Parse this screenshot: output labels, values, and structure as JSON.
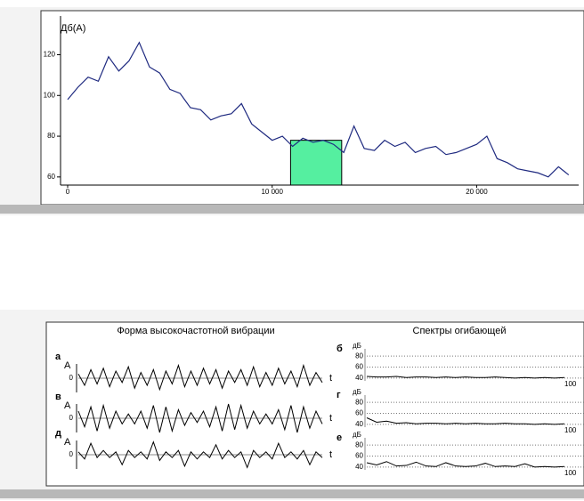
{
  "chart_data": [
    {
      "type": "line",
      "ylabel": "Дб(А)",
      "color": "#1f2a80",
      "x": [
        0,
        500,
        1000,
        1500,
        2000,
        2500,
        3000,
        3500,
        4000,
        4500,
        5000,
        5500,
        6000,
        6500,
        7000,
        7500,
        8000,
        8500,
        9000,
        9500,
        10000,
        10500,
        11000,
        11500,
        12000,
        12500,
        13000,
        13500,
        14000,
        14500,
        15000,
        15500,
        16000,
        16500,
        17000,
        17500,
        18000,
        18500,
        19000,
        19500,
        20000,
        20500,
        21000,
        21500,
        22000,
        22500,
        23000,
        23500,
        24000,
        24500
      ],
      "values": [
        98,
        104,
        109,
        107,
        119,
        112,
        117,
        126,
        114,
        111,
        103,
        101,
        94,
        93,
        88,
        90,
        91,
        96,
        86,
        82,
        78,
        80,
        75,
        79,
        77,
        78,
        76,
        72,
        85,
        74,
        73,
        78,
        75,
        77,
        72,
        74,
        75,
        71,
        72,
        74,
        76,
        80,
        69,
        67,
        64,
        63,
        62,
        60,
        65,
        61
      ],
      "highlight": [
        10900,
        13400
      ],
      "highlight_color": "#55efa0",
      "xlim": [
        0,
        24900
      ],
      "ylim": [
        56,
        139
      ],
      "xticks": [
        0,
        {
          "value": 10000,
          "label": "10 000"
        },
        {
          "value": 20000,
          "label": "20 000"
        }
      ],
      "yticks": [
        60,
        80,
        100,
        120
      ]
    },
    {
      "type": "waveform",
      "title": "Форма высокочастотной вибрации",
      "label": "а",
      "ylabel": "A",
      "xlabel": "t",
      "color": "#000000",
      "ylim": [
        -1,
        1
      ],
      "yticks": [
        0
      ],
      "values": [
        0.3,
        -0.5,
        0.6,
        -0.4,
        0.7,
        -0.6,
        0.5,
        -0.3,
        0.8,
        -0.7,
        0.4,
        -0.5,
        0.6,
        -0.8,
        0.5,
        -0.4,
        0.9,
        -0.6,
        0.5,
        -0.5,
        0.7,
        -0.4,
        0.6,
        -0.7,
        0.5,
        -0.3,
        0.6,
        -0.5,
        0.8,
        -0.6,
        0.4,
        -0.5,
        0.7,
        -0.4,
        0.5,
        -0.6,
        0.9,
        -0.5,
        0.4,
        -0.3
      ]
    },
    {
      "type": "waveform",
      "label": "в",
      "ylabel": "A",
      "xlabel": "t",
      "color": "#000000",
      "ylim": [
        -1,
        1
      ],
      "yticks": [
        0
      ],
      "values": [
        0.5,
        -0.6,
        0.8,
        -0.9,
        0.9,
        -0.7,
        0.5,
        -0.4,
        0.3,
        -0.4,
        0.5,
        -0.7,
        0.9,
        -1,
        0.8,
        -0.9,
        0.6,
        -0.5,
        0.4,
        -0.3,
        0.5,
        -0.6,
        0.8,
        -0.9,
        1,
        -0.8,
        0.9,
        -0.7,
        0.5,
        -0.4,
        0.3,
        -0.4,
        0.6,
        -0.8,
        0.9,
        -1,
        0.8,
        -0.7,
        0.5,
        -0.4
      ]
    },
    {
      "type": "waveform",
      "label": "д",
      "ylabel": "A",
      "xlabel": "t",
      "color": "#000000",
      "ylim": [
        -1,
        1
      ],
      "yticks": [
        0
      ],
      "values": [
        0.2,
        -0.3,
        0.8,
        -0.2,
        0.3,
        -0.2,
        0.2,
        -0.7,
        0.3,
        -0.2,
        0.2,
        -0.3,
        0.9,
        -0.4,
        0.2,
        -0.2,
        0.3,
        -0.8,
        0.2,
        -0.3,
        0.2,
        -0.2,
        0.7,
        -0.3,
        0.3,
        -0.2,
        0.2,
        -0.9,
        0.3,
        -0.2,
        0.2,
        -0.3,
        0.8,
        -0.2,
        0.2,
        -0.3,
        0.3,
        -0.7,
        0.2,
        -0.2
      ]
    },
    {
      "type": "spectrum",
      "title": "Спектры огибающей",
      "label": "б",
      "ylabel": "дБ",
      "color": "#000000",
      "xlim": [
        0,
        100
      ],
      "ylim": [
        35,
        90
      ],
      "xticks": [
        100
      ],
      "yticks": [
        40,
        60,
        80
      ],
      "x": [
        0,
        5,
        10,
        15,
        20,
        25,
        30,
        35,
        40,
        45,
        50,
        55,
        60,
        65,
        70,
        75,
        80,
        85,
        90,
        95,
        100
      ],
      "values": [
        43,
        42,
        42,
        43,
        41,
        42,
        42,
        41,
        42,
        41,
        42,
        41,
        41,
        42,
        41,
        40,
        41,
        40,
        41,
        40,
        41
      ]
    },
    {
      "type": "spectrum",
      "label": "г",
      "ylabel": "дБ",
      "color": "#000000",
      "xlim": [
        0,
        100
      ],
      "ylim": [
        35,
        90
      ],
      "xticks": [
        100
      ],
      "yticks": [
        40,
        60,
        80
      ],
      "x": [
        0,
        5,
        10,
        15,
        20,
        25,
        30,
        35,
        40,
        45,
        50,
        55,
        60,
        65,
        70,
        75,
        80,
        85,
        90,
        95,
        100
      ],
      "values": [
        52,
        44,
        46,
        42,
        43,
        41,
        42,
        42,
        41,
        42,
        41,
        42,
        41,
        41,
        42,
        41,
        41,
        40,
        41,
        40,
        41
      ]
    },
    {
      "type": "spectrum",
      "label": "е",
      "ylabel": "дБ",
      "color": "#000000",
      "xlim": [
        0,
        100
      ],
      "ylim": [
        35,
        90
      ],
      "xticks": [
        100
      ],
      "yticks": [
        40,
        60,
        80
      ],
      "x": [
        0,
        5,
        10,
        15,
        20,
        25,
        30,
        35,
        40,
        45,
        50,
        55,
        60,
        65,
        70,
        75,
        80,
        85,
        90,
        95,
        100
      ],
      "values": [
        48,
        44,
        50,
        42,
        43,
        49,
        42,
        41,
        48,
        42,
        41,
        42,
        47,
        41,
        42,
        41,
        46,
        40,
        41,
        40,
        41
      ]
    }
  ]
}
